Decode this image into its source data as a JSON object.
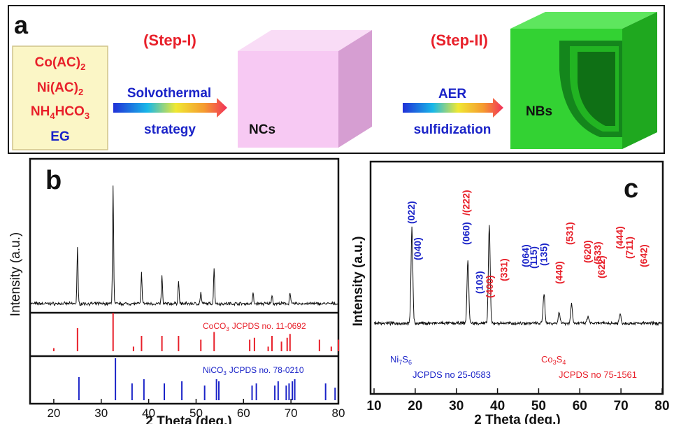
{
  "panel_a": {
    "label": "a",
    "reagents": [
      "Co(AC)",
      "Ni(AC)",
      "NH",
      "HCO",
      "EG"
    ],
    "reagent_subscripts": [
      "2",
      "2",
      "4",
      "3"
    ],
    "step1": {
      "title": "(Step-I)",
      "top": "Solvothermal",
      "bottom": "strategy"
    },
    "step2": {
      "title": "(Step-II)",
      "top": "AER",
      "bottom": "sulfidization"
    },
    "nc_label": "NCs",
    "nb_label": "NBs",
    "colors": {
      "red": "#e8202a",
      "blue": "#1a23c8",
      "reagent_bg": "#fbf6c6",
      "cube_front": "#f7c9f3",
      "box_green": "#33d233"
    }
  },
  "panel_b": {
    "label": "b",
    "ylabel": "Intensity (a.u.)",
    "xlabel": "2 Theta (deg.)",
    "xticks": [
      "20",
      "30",
      "40",
      "50",
      "60",
      "70",
      "80"
    ],
    "ref1": {
      "name": "CoCO",
      "sub": "3",
      "card": "JCPDS no. 11-0692",
      "color": "#e8202a"
    },
    "ref2": {
      "name": "NiCO",
      "sub": "3",
      "card": "JCPDS no. 78-0210",
      "color": "#1a23c8"
    }
  },
  "panel_c": {
    "label": "c",
    "ylabel": "Intensity (a.u.)",
    "xlabel": "2 Theta (deg.)",
    "xticks": [
      "10",
      "20",
      "30",
      "40",
      "50",
      "60",
      "70",
      "80"
    ],
    "ni_phase": {
      "name": "Ni",
      "sub1": "7",
      "mid": "S",
      "sub2": "6",
      "card": "JCPDS no 25-0583"
    },
    "co_phase": {
      "name": "Co",
      "sub1": "3",
      "mid": "S",
      "sub2": "4",
      "card": "JCPDS no 75-1561"
    },
    "peak_labels": [
      {
        "text": "(022)",
        "x": 19.0,
        "color": "blue"
      },
      {
        "text": "(040)",
        "x": 20.5,
        "color": "blue"
      },
      {
        "text": "(060)",
        "x": 32.3,
        "color": "blue"
      },
      {
        "text": "/(222)",
        "x": 32.3,
        "color": "red"
      },
      {
        "text": "(400)",
        "x": 38.0,
        "color": "red"
      },
      {
        "text": "(103)",
        "x": 35.6,
        "color": "blue"
      },
      {
        "text": "(331)",
        "x": 41.5,
        "color": "red"
      },
      {
        "text": "(064)",
        "x": 46.8,
        "color": "blue"
      },
      {
        "text": "(115)",
        "x": 48.7,
        "color": "blue"
      },
      {
        "text": "(135)",
        "x": 51.2,
        "color": "blue"
      },
      {
        "text": "(440)",
        "x": 54.9,
        "color": "red"
      },
      {
        "text": "(531)",
        "x": 57.5,
        "color": "red"
      },
      {
        "text": "(620)",
        "x": 61.8,
        "color": "red"
      },
      {
        "text": "(533)",
        "x": 64.3,
        "color": "red"
      },
      {
        "text": "(622)",
        "x": 65.2,
        "color": "red"
      },
      {
        "text": "(444)",
        "x": 69.6,
        "color": "red"
      },
      {
        "text": "(711)",
        "x": 72.0,
        "color": "red"
      },
      {
        "text": "(642)",
        "x": 75.5,
        "color": "red"
      }
    ]
  },
  "chart_data": [
    {
      "type": "line",
      "ylabel": "Intensity (a.u.)",
      "xlabel": "2 Theta (deg.)",
      "xlim": [
        15,
        80
      ],
      "peaks_2theta": [
        25.0,
        32.5,
        38.5,
        42.8,
        46.3,
        51.0,
        53.8,
        62.0,
        66.0,
        69.8
      ],
      "peak_heights_rel": [
        0.47,
        1.0,
        0.26,
        0.24,
        0.2,
        0.1,
        0.31,
        0.09,
        0.08,
        0.1
      ],
      "reference_series": [
        {
          "name": "CoCO3 JCPDS no. 11-0692",
          "lines_2theta": [
            20.0,
            25.0,
            32.5,
            36.8,
            38.5,
            42.8,
            46.3,
            51.0,
            53.8,
            61.3,
            62.3,
            65.2,
            66.0,
            68.0,
            69.2,
            69.8,
            76.0,
            78.5,
            80.0
          ],
          "rel_intensity": [
            0.08,
            0.6,
            1.0,
            0.12,
            0.4,
            0.4,
            0.4,
            0.3,
            0.5,
            0.3,
            0.35,
            0.12,
            0.4,
            0.25,
            0.35,
            0.45,
            0.3,
            0.12,
            0.3
          ]
        },
        {
          "name": "NiCO3 JCPDS no. 78-0210",
          "lines_2theta": [
            25.3,
            33.0,
            36.5,
            39.0,
            43.3,
            47.0,
            51.8,
            54.3,
            54.8,
            61.8,
            62.7,
            66.6,
            67.3,
            69.0,
            69.6,
            70.3,
            70.8,
            77.3,
            79.3
          ],
          "rel_intensity": [
            0.55,
            1.0,
            0.4,
            0.5,
            0.4,
            0.45,
            0.35,
            0.5,
            0.45,
            0.35,
            0.4,
            0.35,
            0.45,
            0.35,
            0.4,
            0.45,
            0.5,
            0.4,
            0.3
          ]
        }
      ]
    },
    {
      "type": "line",
      "ylabel": "Intensity (a.u.)",
      "xlabel": "2 Theta (deg.)",
      "xlim": [
        10,
        80
      ],
      "peaks_2theta": [
        19.2,
        32.8,
        38.0,
        51.3,
        55.0,
        58.0,
        62.0,
        69.8
      ],
      "peak_heights_rel": [
        0.84,
        0.55,
        0.85,
        0.26,
        0.1,
        0.17,
        0.06,
        0.08
      ]
    }
  ]
}
